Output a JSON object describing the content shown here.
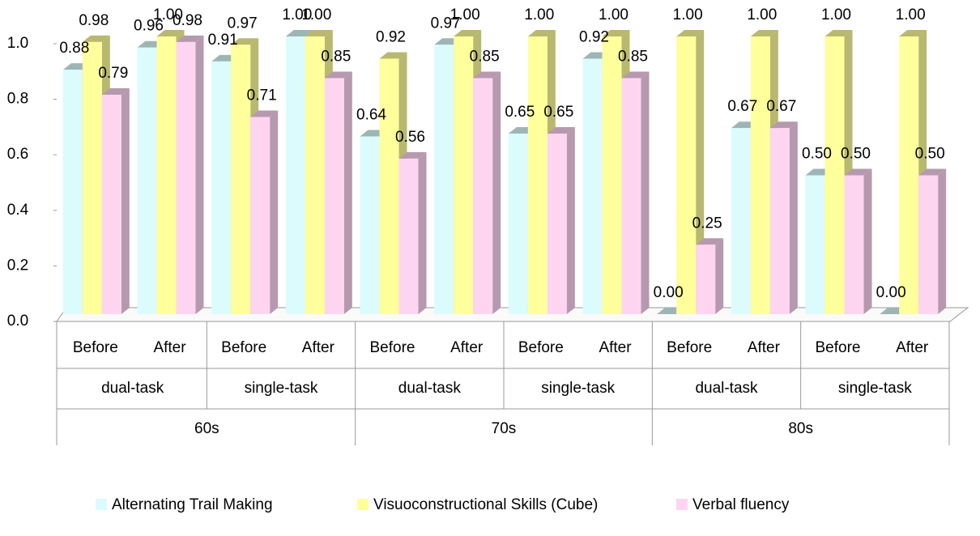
{
  "chart_data": {
    "type": "bar3d",
    "categories": [
      "Before",
      "After",
      "Before",
      "After",
      "Before",
      "After",
      "Before",
      "After",
      "Before",
      "After",
      "Before",
      "After"
    ],
    "subgroups": [
      "dual-task",
      "single-task",
      "dual-task",
      "single-task",
      "dual-task",
      "single-task"
    ],
    "groups": [
      "60s",
      "70s",
      "80s"
    ],
    "ylim": [
      0,
      1
    ],
    "yticks": [
      {
        "value": 0,
        "label": "0.0"
      },
      0.2,
      0.4,
      0.6,
      0.8,
      {
        "value": 1,
        "label": "1.0"
      }
    ],
    "legend": "bottom",
    "series": [
      {
        "name": "Alternating Trail Making",
        "color": "#dcfbfd",
        "label_color": "#1f1fd0",
        "values": [
          0.88,
          0.96,
          0.91,
          1.0,
          0.64,
          0.97,
          0.65,
          0.92,
          0.0,
          0.67,
          0.5,
          0.0
        ],
        "value_labels": [
          "0.88",
          "0.96",
          "0.91",
          "1.00",
          "0.64",
          "0.97",
          "0.65",
          "0.92",
          "0.00",
          "0.67",
          "0.50",
          "0.00"
        ]
      },
      {
        "name": "Visuoconstructional Skills (Cube)",
        "color": "#ffff9c",
        "label_color": "#000000",
        "values": [
          0.98,
          1.0,
          0.97,
          1.0,
          0.92,
          1.0,
          1.0,
          1.0,
          1.0,
          1.0,
          1.0,
          1.0
        ],
        "value_labels": [
          "0.98",
          "1.00",
          "0.97",
          "1.00",
          "0.92",
          "1.00",
          "1.00",
          "1.00",
          "1.00",
          "1.00",
          "1.00",
          "1.00"
        ]
      },
      {
        "name": "Verbal fluency",
        "color": "#fdd5f1",
        "label_color": "#ff0000",
        "values": [
          0.79,
          0.98,
          0.71,
          0.85,
          0.56,
          0.85,
          0.65,
          0.85,
          0.25,
          0.67,
          0.5,
          0.5
        ],
        "value_labels": [
          "0.79",
          "0.98",
          "0.71",
          "0.85",
          "0.56",
          "0.85",
          "0.65",
          "0.85",
          "0.25",
          "0.67",
          "0.50",
          "0.50"
        ]
      }
    ]
  }
}
